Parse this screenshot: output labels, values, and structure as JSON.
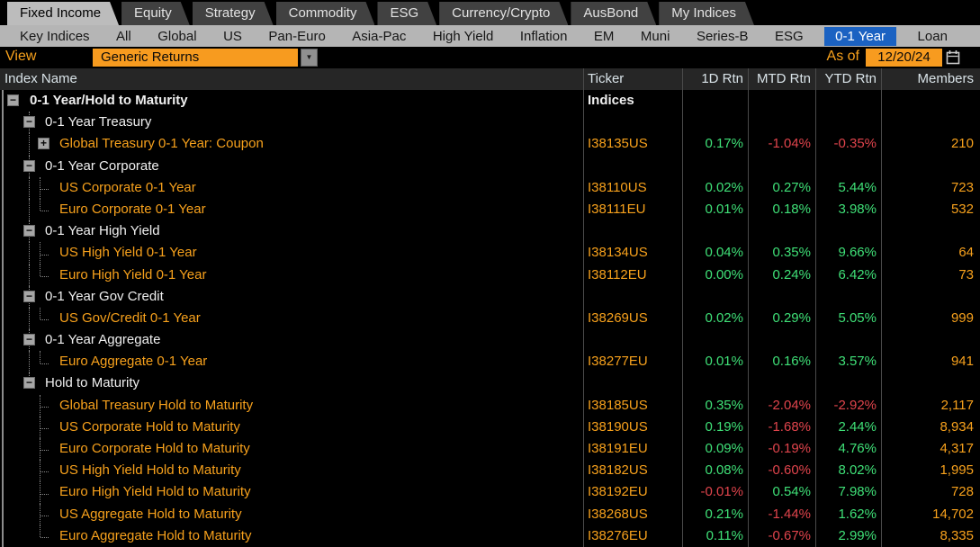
{
  "tabs": {
    "items": [
      {
        "label": "Fixed Income",
        "active": true
      },
      {
        "label": "Equity",
        "active": false
      },
      {
        "label": "Strategy",
        "active": false
      },
      {
        "label": "Commodity",
        "active": false
      },
      {
        "label": "ESG",
        "active": false
      },
      {
        "label": "Currency/Crypto",
        "active": false
      },
      {
        "label": "AusBond",
        "active": false
      },
      {
        "label": "My Indices",
        "active": false
      }
    ]
  },
  "nav": {
    "items": [
      {
        "label": "Key Indices",
        "selected": false
      },
      {
        "label": "All",
        "selected": false
      },
      {
        "label": "Global",
        "selected": false
      },
      {
        "label": "US",
        "selected": false
      },
      {
        "label": "Pan-Euro",
        "selected": false
      },
      {
        "label": "Asia-Pac",
        "selected": false
      },
      {
        "label": "High Yield",
        "selected": false
      },
      {
        "label": "Inflation",
        "selected": false
      },
      {
        "label": "EM",
        "selected": false
      },
      {
        "label": "Muni",
        "selected": false
      },
      {
        "label": "Series-B",
        "selected": false
      },
      {
        "label": "ESG",
        "selected": false
      },
      {
        "label": "0-1 Year",
        "selected": true
      },
      {
        "label": "Loan",
        "selected": false
      }
    ]
  },
  "toolbar": {
    "view_label": "View",
    "view_value": "Generic Returns",
    "dropdown_arrow": "▼",
    "asof_label": "As of",
    "asof_value": "12/20/24"
  },
  "table": {
    "columns": [
      "Index Name",
      "Ticker",
      "1D Rtn",
      "MTD Rtn",
      "YTD Rtn",
      "Members"
    ],
    "rows": [
      {
        "name": "0-1 Year/Hold to Maturity",
        "level": 0,
        "type": "group",
        "bold": true,
        "expander": "minus",
        "branch": null,
        "guide": null,
        "ticker": "Indices",
        "ticker_white": true,
        "d1": null,
        "mtd": null,
        "ytd": null,
        "members": null
      },
      {
        "name": "0-1 Year Treasury",
        "level": 1,
        "type": "group",
        "bold": false,
        "expander": "minus",
        "branch": null,
        "guide": "full",
        "ticker": null,
        "d1": null,
        "mtd": null,
        "ytd": null,
        "members": null
      },
      {
        "name": "Global Treasury 0-1 Year: Coupon",
        "level": 2,
        "type": "leaf",
        "bold": false,
        "expander": "plus",
        "branch": null,
        "guide": "full",
        "ticker": "I38135US",
        "d1": "0.17%",
        "mtd": "-1.04%",
        "ytd": "-0.35%",
        "members": "210"
      },
      {
        "name": "0-1 Year Corporate",
        "level": 1,
        "type": "group",
        "bold": false,
        "expander": "minus",
        "branch": null,
        "guide": "full",
        "ticker": null,
        "d1": null,
        "mtd": null,
        "ytd": null,
        "members": null
      },
      {
        "name": "US Corporate 0-1 Year",
        "level": 2,
        "type": "leaf",
        "bold": false,
        "expander": null,
        "branch": "tee",
        "guide": "full",
        "ticker": "I38110US",
        "d1": "0.02%",
        "mtd": "0.27%",
        "ytd": "5.44%",
        "members": "723"
      },
      {
        "name": "Euro Corporate 0-1 Year",
        "level": 2,
        "type": "leaf",
        "bold": false,
        "expander": null,
        "branch": "elbow",
        "guide": "full",
        "ticker": "I38111EU",
        "d1": "0.01%",
        "mtd": "0.18%",
        "ytd": "3.98%",
        "members": "532"
      },
      {
        "name": "0-1 Year High Yield",
        "level": 1,
        "type": "group",
        "bold": false,
        "expander": "minus",
        "branch": null,
        "guide": "full",
        "ticker": null,
        "d1": null,
        "mtd": null,
        "ytd": null,
        "members": null
      },
      {
        "name": "US High Yield 0-1 Year",
        "level": 2,
        "type": "leaf",
        "bold": false,
        "expander": null,
        "branch": "tee",
        "guide": "full",
        "ticker": "I38134US",
        "d1": "0.04%",
        "mtd": "0.35%",
        "ytd": "9.66%",
        "members": "64"
      },
      {
        "name": "Euro High Yield 0-1 Year",
        "level": 2,
        "type": "leaf",
        "bold": false,
        "expander": null,
        "branch": "elbow",
        "guide": "full",
        "ticker": "I38112EU",
        "d1": "0.00%",
        "mtd": "0.24%",
        "ytd": "6.42%",
        "members": "73"
      },
      {
        "name": "0-1 Year Gov Credit",
        "level": 1,
        "type": "group",
        "bold": false,
        "expander": "minus",
        "branch": null,
        "guide": "full",
        "ticker": null,
        "d1": null,
        "mtd": null,
        "ytd": null,
        "members": null
      },
      {
        "name": "US Gov/Credit 0-1 Year",
        "level": 2,
        "type": "leaf",
        "bold": false,
        "expander": null,
        "branch": "elbow",
        "guide": "full",
        "ticker": "I38269US",
        "d1": "0.02%",
        "mtd": "0.29%",
        "ytd": "5.05%",
        "members": "999"
      },
      {
        "name": "0-1 Year Aggregate",
        "level": 1,
        "type": "group",
        "bold": false,
        "expander": "minus",
        "branch": null,
        "guide": "full",
        "ticker": null,
        "d1": null,
        "mtd": null,
        "ytd": null,
        "members": null
      },
      {
        "name": "Euro Aggregate 0-1 Year",
        "level": 2,
        "type": "leaf",
        "bold": false,
        "expander": null,
        "branch": "elbow",
        "guide": "full",
        "ticker": "I38277EU",
        "d1": "0.01%",
        "mtd": "0.16%",
        "ytd": "3.57%",
        "members": "941"
      },
      {
        "name": "Hold to Maturity",
        "level": 1,
        "type": "group",
        "bold": false,
        "expander": "minus",
        "branch": null,
        "guide": "half",
        "ticker": null,
        "d1": null,
        "mtd": null,
        "ytd": null,
        "members": null
      },
      {
        "name": "Global Treasury Hold to Maturity",
        "level": 2,
        "type": "leaf",
        "bold": false,
        "expander": null,
        "branch": "tee",
        "guide": null,
        "ticker": "I38185US",
        "d1": "0.35%",
        "mtd": "-2.04%",
        "ytd": "-2.92%",
        "members": "2,117"
      },
      {
        "name": "US Corporate Hold to Maturity",
        "level": 2,
        "type": "leaf",
        "bold": false,
        "expander": null,
        "branch": "tee",
        "guide": null,
        "ticker": "I38190US",
        "d1": "0.19%",
        "mtd": "-1.68%",
        "ytd": "2.44%",
        "members": "8,934"
      },
      {
        "name": "Euro Corporate Hold to Maturity",
        "level": 2,
        "type": "leaf",
        "bold": false,
        "expander": null,
        "branch": "tee",
        "guide": null,
        "ticker": "I38191EU",
        "d1": "0.09%",
        "mtd": "-0.19%",
        "ytd": "4.76%",
        "members": "4,317"
      },
      {
        "name": "US High Yield Hold to Maturity",
        "level": 2,
        "type": "leaf",
        "bold": false,
        "expander": null,
        "branch": "tee",
        "guide": null,
        "ticker": "I38182US",
        "d1": "0.08%",
        "mtd": "-0.60%",
        "ytd": "8.02%",
        "members": "1,995"
      },
      {
        "name": "Euro High Yield Hold to Maturity",
        "level": 2,
        "type": "leaf",
        "bold": false,
        "expander": null,
        "branch": "tee",
        "guide": null,
        "ticker": "I38192EU",
        "d1": "-0.01%",
        "mtd": "0.54%",
        "ytd": "7.98%",
        "members": "728"
      },
      {
        "name": "US Aggregate Hold to Maturity",
        "level": 2,
        "type": "leaf",
        "bold": false,
        "expander": null,
        "branch": "tee",
        "guide": null,
        "ticker": "I38268US",
        "d1": "0.21%",
        "mtd": "-1.44%",
        "ytd": "1.62%",
        "members": "14,702"
      },
      {
        "name": "Euro Aggregate Hold to Maturity",
        "level": 2,
        "type": "leaf",
        "bold": false,
        "expander": null,
        "branch": "elbow",
        "guide": null,
        "ticker": "I38276EU",
        "d1": "0.11%",
        "mtd": "-0.67%",
        "ytd": "2.99%",
        "members": "8,335"
      }
    ]
  },
  "icons": {
    "expander_minus": "minus-expander-icon",
    "expander_plus": "plus-expander-icon",
    "dropdown": "chevron-down-icon",
    "calendar": "calendar-icon"
  },
  "colors": {
    "accent_orange": "#f7a11c",
    "positive_green": "#3fe077",
    "negative_red": "#e0444c",
    "selected_blue": "#1b62c2",
    "nav_silver": "#b5b5b5",
    "header_text": "#d9e3e8",
    "background": "#000000"
  }
}
